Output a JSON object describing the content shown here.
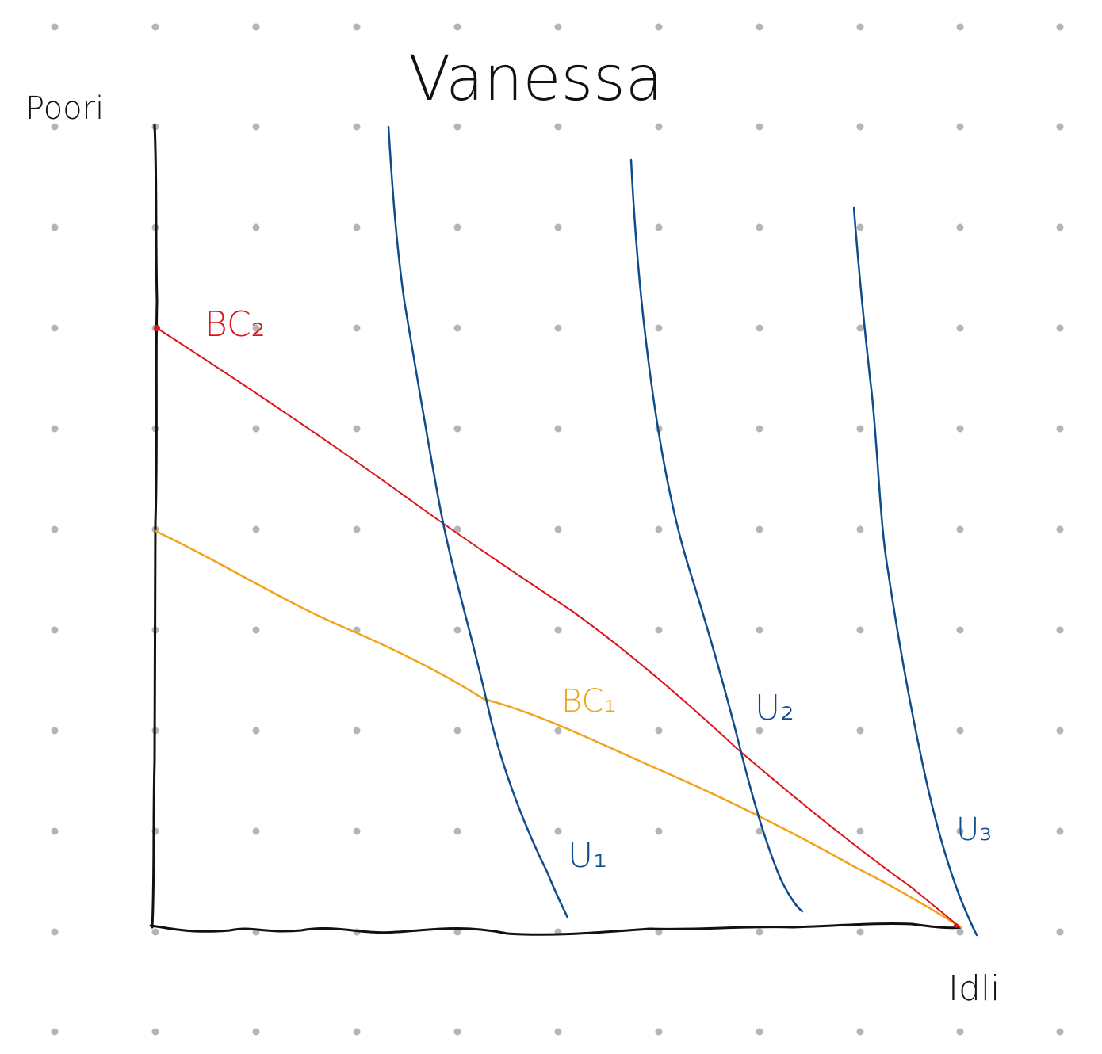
{
  "title": "Vanessa",
  "axes": {
    "y_label": "Poori",
    "x_label": "Idli"
  },
  "budget_lines": [
    {
      "label": "BC₂",
      "color": "#d9141b"
    },
    {
      "label": "BC₁",
      "color": "#f2a31e"
    }
  ],
  "indifference_curves": [
    {
      "label": "U₁",
      "color": "#0f4c8c"
    },
    {
      "label": "U₂",
      "color": "#0f4c8c"
    },
    {
      "label": "U₃",
      "color": "#0f4c8c"
    }
  ],
  "colors": {
    "axis": "#111111",
    "grid_dot": "#b5b5b5",
    "background": "#ffffff"
  }
}
